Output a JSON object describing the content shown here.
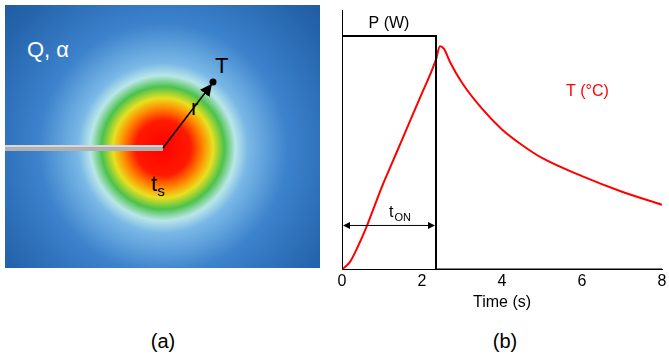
{
  "panel_a": {
    "label": "(a)",
    "texts": {
      "medium": "Q, α",
      "point": "T",
      "radius": "r",
      "source": {
        "text": "t",
        "subscript": "s"
      }
    }
  },
  "chart_data": {
    "label": "(b)",
    "type": "line",
    "x_label": "Time (s)",
    "series": [
      {
        "name": "P (W)",
        "color": "#000000",
        "x": [
          0,
          0,
          2.35,
          2.35,
          8
        ],
        "values": [
          0,
          0.9,
          0.9,
          0,
          0
        ]
      },
      {
        "name": "T (°C)",
        "color": "#ff0000",
        "x": [
          0,
          0.2,
          0.4,
          0.6,
          0.8,
          1.0,
          1.25,
          1.5,
          1.75,
          2.0,
          2.2,
          2.35,
          2.45,
          2.55,
          2.7,
          3.0,
          3.5,
          4.0,
          4.5,
          5.0,
          6.0,
          7.0,
          8.0
        ],
        "values": [
          0,
          0.03,
          0.09,
          0.16,
          0.24,
          0.32,
          0.41,
          0.5,
          0.59,
          0.68,
          0.75,
          0.81,
          0.86,
          0.85,
          0.8,
          0.72,
          0.62,
          0.54,
          0.48,
          0.43,
          0.36,
          0.3,
          0.25
        ]
      }
    ],
    "xlim": [
      0,
      8
    ],
    "xticks": [
      0,
      2,
      4,
      6,
      8
    ],
    "ylim": [
      0,
      1
    ],
    "yticks": [],
    "tick_labels": "x",
    "grid": false,
    "annotation": {
      "text": "t",
      "subscript": "ON",
      "from": 0,
      "to": 2.35,
      "y": 0.17
    }
  }
}
